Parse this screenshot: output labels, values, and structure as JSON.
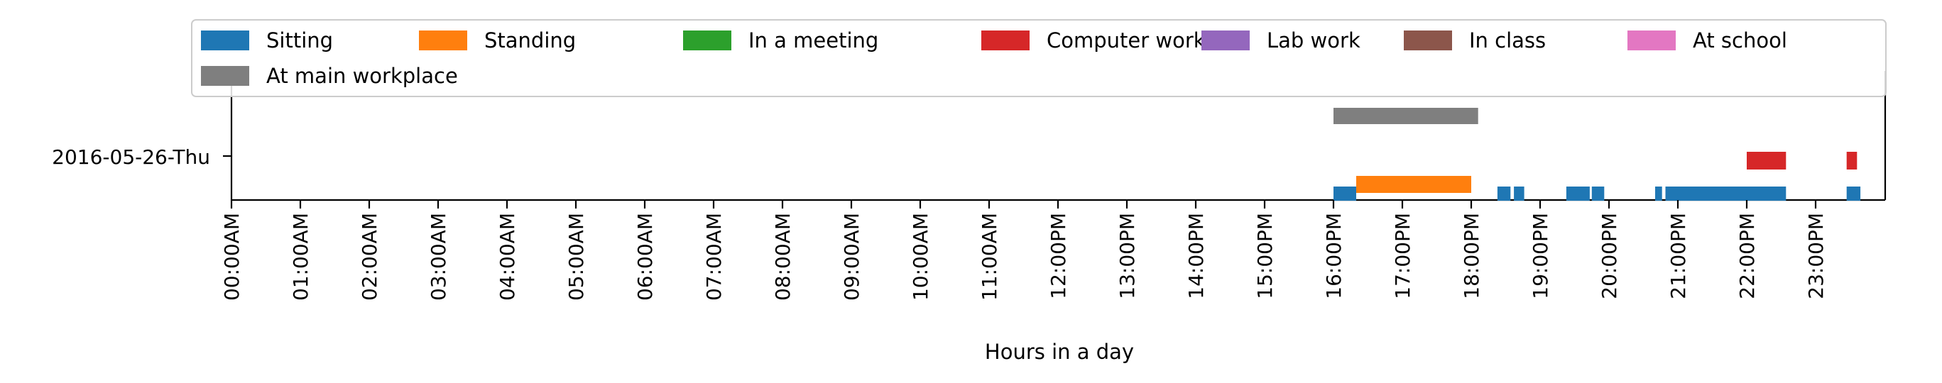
{
  "chart_data": {
    "type": "timeline",
    "title": "",
    "xlabel": "Hours in a day",
    "ylabel": "",
    "xlim": [
      0,
      24
    ],
    "x_ticks": [
      {
        "value": 0,
        "label": "00:00AM"
      },
      {
        "value": 1,
        "label": "01:00AM"
      },
      {
        "value": 2,
        "label": "02:00AM"
      },
      {
        "value": 3,
        "label": "03:00AM"
      },
      {
        "value": 4,
        "label": "04:00AM"
      },
      {
        "value": 5,
        "label": "05:00AM"
      },
      {
        "value": 6,
        "label": "06:00AM"
      },
      {
        "value": 7,
        "label": "07:00AM"
      },
      {
        "value": 8,
        "label": "08:00AM"
      },
      {
        "value": 9,
        "label": "09:00AM"
      },
      {
        "value": 10,
        "label": "10:00AM"
      },
      {
        "value": 11,
        "label": "11:00AM"
      },
      {
        "value": 12,
        "label": "12:00PM"
      },
      {
        "value": 13,
        "label": "13:00PM"
      },
      {
        "value": 14,
        "label": "14:00PM"
      },
      {
        "value": 15,
        "label": "15:00PM"
      },
      {
        "value": 16,
        "label": "16:00PM"
      },
      {
        "value": 17,
        "label": "17:00PM"
      },
      {
        "value": 18,
        "label": "18:00PM"
      },
      {
        "value": 19,
        "label": "19:00PM"
      },
      {
        "value": 20,
        "label": "20:00PM"
      },
      {
        "value": 21,
        "label": "21:00PM"
      },
      {
        "value": 22,
        "label": "22:00PM"
      },
      {
        "value": 23,
        "label": "23:00PM"
      }
    ],
    "day_label": "2016-05-26-Thu",
    "legend": {
      "placement": "top",
      "items": [
        {
          "name": "Sitting",
          "color": "#1f77b4"
        },
        {
          "name": "Standing",
          "color": "#ff7f0e"
        },
        {
          "name": "In a meeting",
          "color": "#2ca02c"
        },
        {
          "name": "Computer work",
          "color": "#d62728"
        },
        {
          "name": "Lab work",
          "color": "#9467bd"
        },
        {
          "name": "In class",
          "color": "#8c564b"
        },
        {
          "name": "At school",
          "color": "#e377c2"
        },
        {
          "name": "At main workplace",
          "color": "#7f7f7f"
        }
      ]
    },
    "series": [
      {
        "name": "Sitting",
        "color": "#1f77b4",
        "intervals": [
          [
            16.0,
            16.33
          ],
          [
            18.38,
            18.57
          ],
          [
            18.62,
            18.77
          ],
          [
            19.38,
            19.72
          ],
          [
            19.75,
            19.93
          ],
          [
            20.67,
            20.77
          ],
          [
            20.82,
            22.57
          ],
          [
            23.45,
            23.65
          ]
        ]
      },
      {
        "name": "Standing",
        "color": "#ff7f0e",
        "intervals": [
          [
            16.33,
            18.0
          ]
        ]
      },
      {
        "name": "In a meeting",
        "color": "#2ca02c",
        "intervals": []
      },
      {
        "name": "Computer work",
        "color": "#d62728",
        "intervals": [
          [
            22.0,
            22.57
          ],
          [
            23.45,
            23.6
          ]
        ]
      },
      {
        "name": "Lab work",
        "color": "#9467bd",
        "intervals": []
      },
      {
        "name": "In class",
        "color": "#8c564b",
        "intervals": []
      },
      {
        "name": "At school",
        "color": "#e377c2",
        "intervals": []
      },
      {
        "name": "At main workplace",
        "color": "#7f7f7f",
        "intervals": [
          [
            16.0,
            18.1
          ]
        ]
      }
    ]
  }
}
